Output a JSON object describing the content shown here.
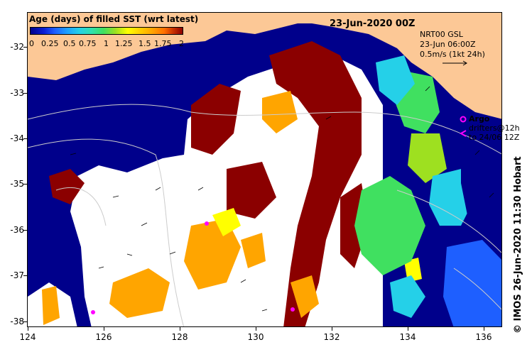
{
  "title": "23-Jun-2020 00Z",
  "colorbar": {
    "title": "Age (days) of filled SST (wrt latest)",
    "ticks": [
      "0",
      "0.25",
      "0.5",
      "0.75",
      "1",
      "1.25",
      "1.5",
      "1.75",
      "2"
    ],
    "range": [
      0,
      2
    ]
  },
  "current_legend": {
    "line1": "NRT00 GSL",
    "line2": "23-Jun 06:00Z",
    "line3": "0.5m/s (1kt 24h)"
  },
  "argo_label": "Argo",
  "drifters_label": "drifters@12h",
  "drifters_label2": "to 24/06 12Z",
  "credit": "© IMOS 26-Jun-2020 11:30 Hobart",
  "axes": {
    "lon_ticks": [
      "124",
      "126",
      "128",
      "130",
      "132",
      "134",
      "136"
    ],
    "lat_ticks": [
      "-32",
      "-33",
      "-34",
      "-35",
      "-36",
      "-37",
      "-38"
    ],
    "lon_range": [
      124,
      136.5
    ],
    "lat_range": [
      -38.1,
      -31.3
    ]
  },
  "colors": {
    "land": "#fcc896",
    "ocean_fresh": "#00008b",
    "age_1": "#25d0e8",
    "age_1_25": "#40e060",
    "age_1_5": "#ffff00",
    "age_1_75": "#ffa500",
    "age_2": "#8b0000",
    "argo": "#ff00ff"
  }
}
